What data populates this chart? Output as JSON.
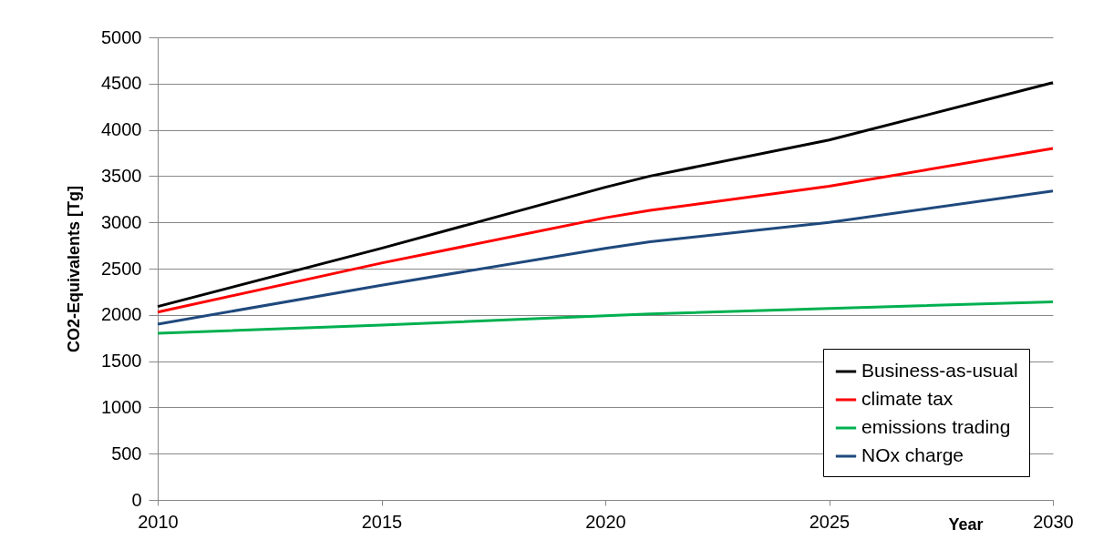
{
  "chart_data": {
    "type": "line",
    "xlabel": "Year",
    "ylabel": "CO2-Equivalents [Tg]",
    "x": [
      2010,
      2015,
      2020,
      2021,
      2025,
      2030
    ],
    "series": [
      {
        "name": "Business-as-usual",
        "color": "#000000",
        "values": [
          2090,
          2720,
          3380,
          3500,
          3890,
          4510
        ]
      },
      {
        "name": "climate tax",
        "color": "#ff0000",
        "values": [
          2030,
          2560,
          3050,
          3130,
          3390,
          3800
        ]
      },
      {
        "name": "emissions trading",
        "color": "#00b050",
        "values": [
          1800,
          1890,
          1990,
          2010,
          2070,
          2140
        ]
      },
      {
        "name": "NOx charge",
        "color": "#1f497d",
        "values": [
          1900,
          2320,
          2720,
          2790,
          3000,
          3340
        ]
      }
    ],
    "xlim": [
      2010,
      2030
    ],
    "xticks": [
      2010,
      2015,
      2020,
      2025,
      2030
    ],
    "ylim": [
      0,
      5000
    ],
    "yticks": [
      0,
      500,
      1000,
      1500,
      2000,
      2500,
      3000,
      3500,
      4000,
      4500,
      5000
    ],
    "grid": "y",
    "legend": "bottom right",
    "line_style": "solid",
    "marker": "none"
  }
}
